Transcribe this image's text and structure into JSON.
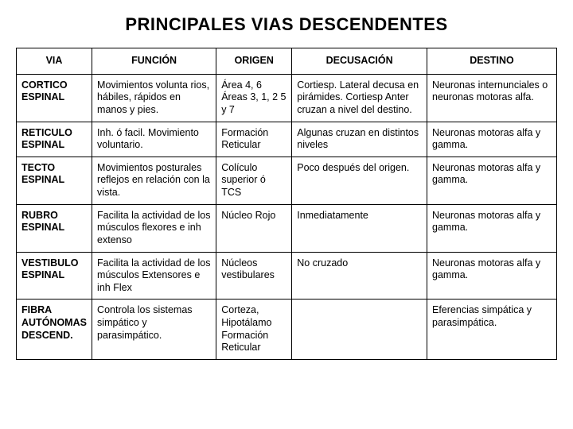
{
  "title": "PRINCIPALES  VIAS  DESCENDENTES",
  "columns": [
    "VIA",
    "FUNCIÓN",
    "ORIGEN",
    "DECUSACIÓN",
    "DESTINO"
  ],
  "rows": [
    {
      "via": "CORTICO ESPINAL",
      "funcion": "Movimientos volunta rios, hábiles, rápidos en manos y pies.",
      "origen": "Área 4, 6 Áreas 3, 1, 2          5 y 7",
      "decusacion": "Cortiesp. Lateral decusa en pirámides. Cortiesp Anter cruzan a nivel del destino.",
      "destino": "Neuronas internunciales o neuronas motoras alfa."
    },
    {
      "via": "RETICULO ESPINAL",
      "funcion": "Inh. ó facil. Movimiento voluntario.",
      "origen": "Formación Reticular",
      "decusacion": "Algunas cruzan en distintos niveles",
      "destino": "Neuronas motoras alfa y gamma."
    },
    {
      "via": "TECTO ESPINAL",
      "funcion": "Movimientos posturales reflejos en relación con la vista.",
      "origen": "Colículo superior ó TCS",
      "decusacion": "Poco después del origen.",
      "destino": "Neuronas motoras alfa y gamma."
    },
    {
      "via": "RUBRO ESPINAL",
      "funcion": "Facilita la actividad de los músculos flexores e inh extenso",
      "origen": "Núcleo Rojo",
      "decusacion": "Inmediatamente",
      "destino": "Neuronas motoras alfa y gamma."
    },
    {
      "via": "VESTIBULO ESPINAL",
      "funcion": "Facilita la actividad de los músculos Extensores e inh Flex",
      "origen": "Núcleos vestibulares",
      "decusacion": "No cruzado",
      "destino": "Neuronas motoras alfa y gamma."
    },
    {
      "via": "FIBRA AUTÓNOMAS DESCEND.",
      "funcion": "Controla los sistemas simpático y parasimpático.",
      "origen": "Corteza, Hipotálamo Formación Reticular",
      "decusacion": "",
      "destino": "Eferencias simpática y parasimpática."
    }
  ]
}
